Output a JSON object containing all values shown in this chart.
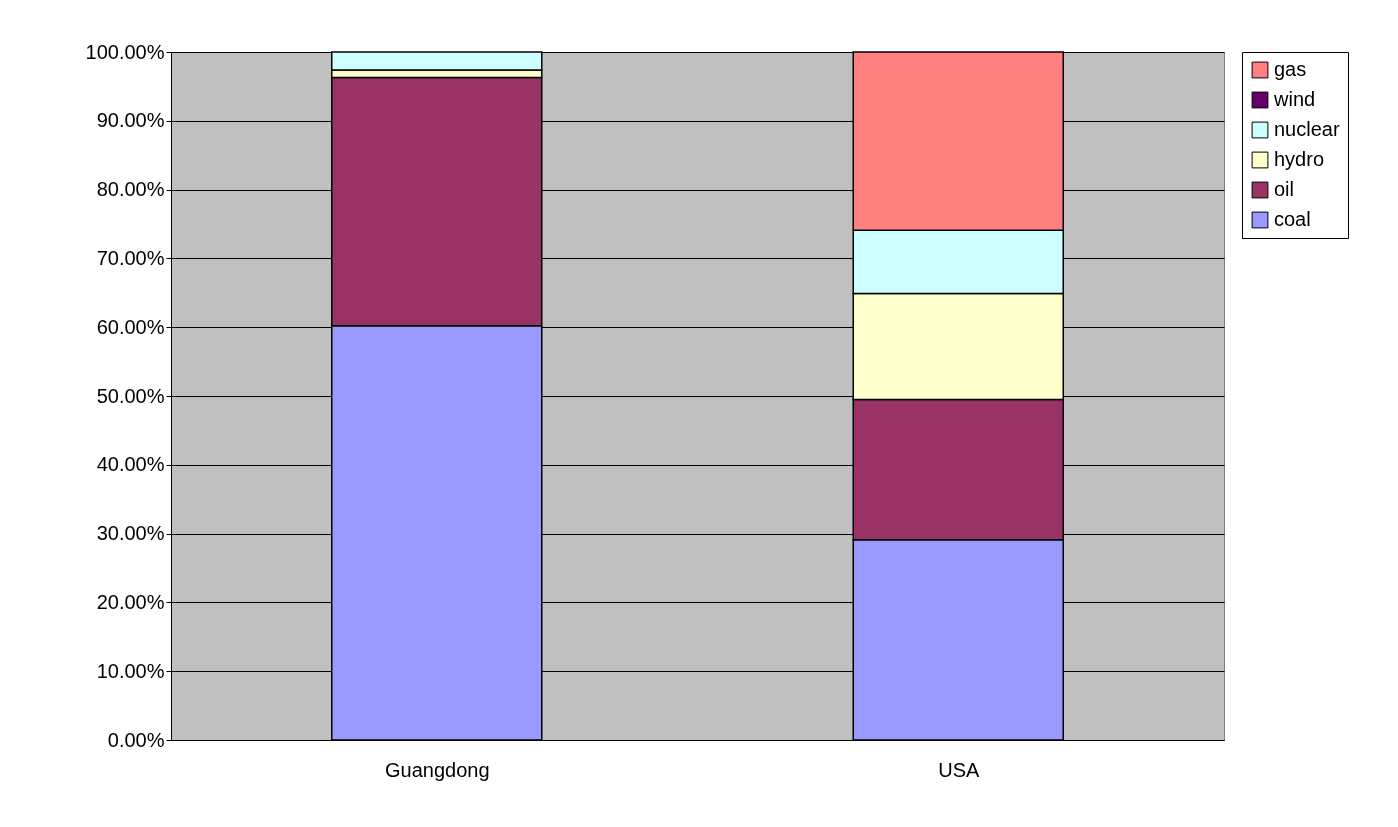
{
  "chart_data": {
    "type": "bar",
    "stacked": true,
    "categories": [
      "Guangdong",
      "USA"
    ],
    "series": [
      {
        "name": "coal",
        "color": "#9999ff",
        "values": [
          60.2,
          29.1
        ]
      },
      {
        "name": "oil",
        "color": "#993366",
        "values": [
          36.1,
          20.4
        ]
      },
      {
        "name": "hydro",
        "color": "#ffffcc",
        "values": [
          1.1,
          15.4
        ]
      },
      {
        "name": "nuclear",
        "color": "#ccffff",
        "values": [
          2.6,
          9.2
        ]
      },
      {
        "name": "wind",
        "color": "#660066",
        "values": [
          0,
          0
        ]
      },
      {
        "name": "gas",
        "color": "#ff8080",
        "values": [
          0,
          25.9
        ]
      }
    ],
    "ylim": [
      0,
      100
    ],
    "yticks": [
      {
        "value": 0,
        "label": "0.00%"
      },
      {
        "value": 10,
        "label": "10.00%"
      },
      {
        "value": 20,
        "label": "20.00%"
      },
      {
        "value": 30,
        "label": "30.00%"
      },
      {
        "value": 40,
        "label": "40.00%"
      },
      {
        "value": 50,
        "label": "50.00%"
      },
      {
        "value": 60,
        "label": "60.00%"
      },
      {
        "value": 70,
        "label": "70.00%"
      },
      {
        "value": 80,
        "label": "80.00%"
      },
      {
        "value": 90,
        "label": "90.00%"
      },
      {
        "value": 100,
        "label": "100.00%"
      }
    ],
    "grid": "y",
    "legend": "right"
  }
}
